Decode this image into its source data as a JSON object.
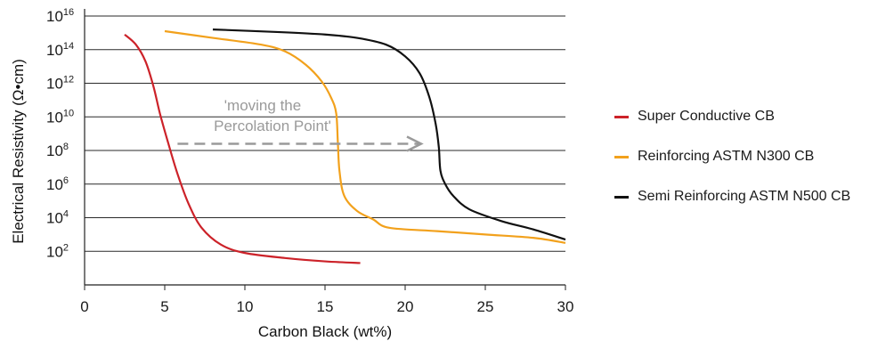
{
  "chart_data": {
    "type": "line",
    "xlabel": "Carbon Black (wt%)",
    "ylabel": "Electrical Resistivity (Ω•cm)",
    "xlim": [
      0,
      30
    ],
    "ylim_log10": [
      0,
      16
    ],
    "y_scale": "log",
    "x_ticks": [
      "0",
      "5",
      "10",
      "15",
      "20",
      "25",
      "30"
    ],
    "y_ticks": [
      {
        "base": "10",
        "exp": "2",
        "log10": 2
      },
      {
        "base": "10",
        "exp": "4",
        "log10": 4
      },
      {
        "base": "10",
        "exp": "6",
        "log10": 6
      },
      {
        "base": "10",
        "exp": "8",
        "log10": 8
      },
      {
        "base": "10",
        "exp": "10",
        "log10": 10
      },
      {
        "base": "10",
        "exp": "12",
        "log10": 12
      },
      {
        "base": "10",
        "exp": "14",
        "log10": 14
      },
      {
        "base": "10",
        "exp": "16",
        "log10": 16
      }
    ],
    "grid": "horizontal",
    "legend_position": "right",
    "series": [
      {
        "name": "Super Conductive CB",
        "color": "#cc2229",
        "x": [
          2.5,
          3.2,
          3.8,
          4.3,
          4.7,
          5.2,
          5.8,
          6.5,
          7.3,
          8.5,
          10,
          12.5,
          15,
          17.2
        ],
        "log10_y": [
          14.9,
          14.3,
          13.3,
          11.8,
          10.2,
          8.5,
          6.6,
          4.8,
          3.4,
          2.4,
          1.9,
          1.6,
          1.4,
          1.3
        ]
      },
      {
        "name": "Reinforcing ASTM N300 CB",
        "color": "#f2a11c",
        "x": [
          5,
          8,
          11,
          12.5,
          13.8,
          14.8,
          15.4,
          15.7,
          15.8,
          15.9,
          16.2,
          17,
          18,
          19,
          22,
          25,
          28,
          30
        ],
        "log10_y": [
          15.1,
          14.7,
          14.3,
          13.9,
          13.1,
          12.1,
          11.1,
          10.2,
          8.5,
          6.8,
          5.3,
          4.4,
          3.9,
          3.4,
          3.2,
          3.0,
          2.8,
          2.5
        ]
      },
      {
        "name": "Semi Reinforcing ASTM N500 CB",
        "color": "#111111",
        "x": [
          8,
          12,
          15,
          17,
          18.8,
          20,
          20.9,
          21.5,
          21.9,
          22.1,
          22.2,
          22.5,
          23,
          24,
          26,
          28,
          30
        ],
        "log10_y": [
          15.2,
          15.05,
          14.9,
          14.7,
          14.3,
          13.6,
          12.6,
          11.2,
          9.6,
          8.2,
          6.8,
          6.0,
          5.3,
          4.5,
          3.8,
          3.3,
          2.7
        ]
      }
    ],
    "annotation": {
      "lines": [
        "'moving the",
        "Percolation Point'"
      ],
      "arrow_from_x": 5.8,
      "arrow_to_x": 21,
      "arrow_log10_y": 8.4,
      "color": "#9a9a9a"
    }
  }
}
